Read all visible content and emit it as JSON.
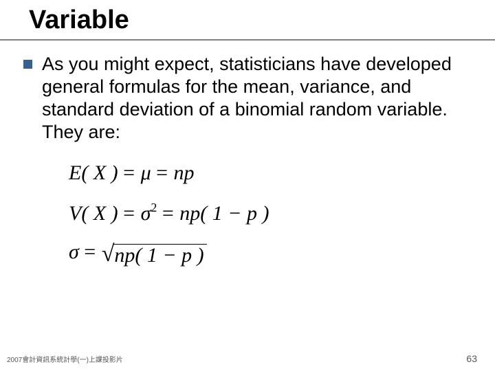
{
  "title": "Variable",
  "bullet": {
    "color": "#376092",
    "text": "As you might expect, statisticians have developed general formulas for the mean, variance, and standard deviation of a binomial random variable. They are:"
  },
  "formulas": {
    "mean": {
      "lhs": "E( X )",
      "eq1": "=",
      "sym": "μ",
      "eq2": "=",
      "rhs": "np"
    },
    "variance": {
      "lhs": "V( X )",
      "eq1": "=",
      "sym": "σ",
      "exp": "2",
      "eq2": "=",
      "rhs": "np( 1 − p )"
    },
    "sd": {
      "sym": "σ",
      "eq": "=",
      "radicand": "np( 1 − p )"
    }
  },
  "footer": {
    "left": "2007會計資訊系統計學(一)上課投影片",
    "page": "63"
  },
  "colors": {
    "rule": "#808080",
    "text": "#000000",
    "footer": "#555555",
    "background": "#ffffff"
  }
}
